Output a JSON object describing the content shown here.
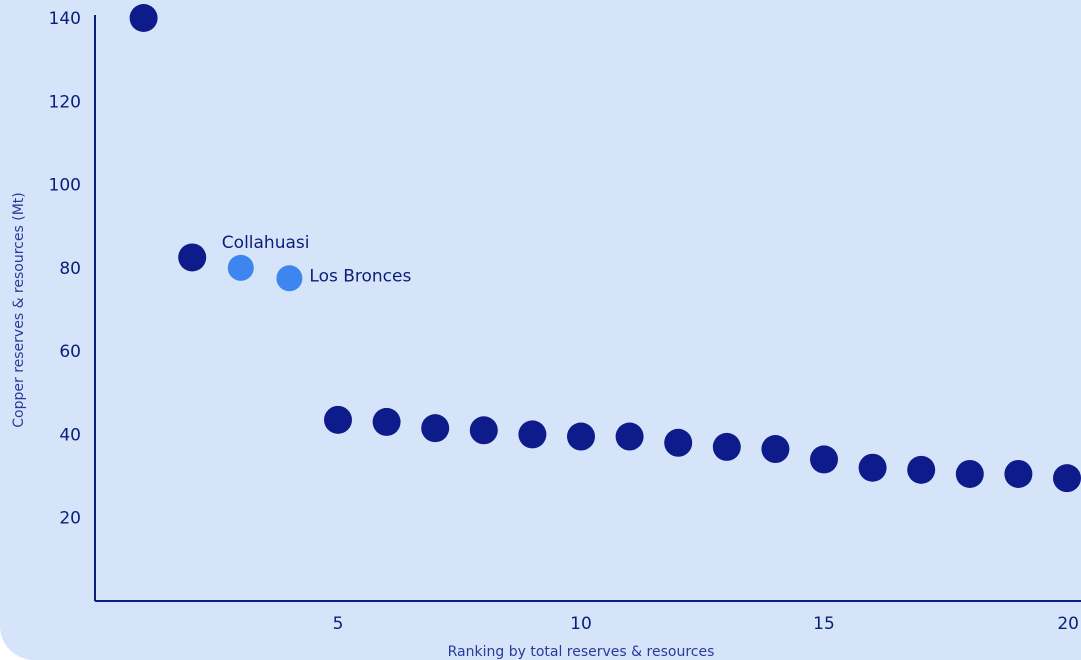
{
  "colors": {
    "background": "#d6e4fa",
    "point": "#0d1c8a",
    "highlight": "#3d86ef",
    "axis": "#0b1e7a",
    "text": "#0b1e7a"
  },
  "chart_data": {
    "type": "scatter",
    "title": "",
    "xlabel": "Ranking by total reserves & resources",
    "ylabel": "Copper reserves & resources (Mt)",
    "xlim": [
      0,
      20
    ],
    "ylim": [
      0,
      140
    ],
    "x_ticks": [
      5,
      10,
      15,
      20
    ],
    "y_ticks": [
      20,
      40,
      60,
      80,
      100,
      120,
      140
    ],
    "grid": false,
    "series": [
      {
        "role": "other",
        "color": "#0d1c8a",
        "x": [
          1,
          2,
          5,
          6,
          7,
          8,
          9,
          10,
          11,
          12,
          13,
          14,
          15,
          16,
          17,
          18,
          19,
          20
        ],
        "y": [
          140,
          82.5,
          43.5,
          43,
          41.5,
          41,
          40,
          39.5,
          39.5,
          38,
          37,
          36.5,
          34,
          32,
          31.5,
          30.5,
          30.5,
          29.5
        ]
      },
      {
        "role": "highlight",
        "color": "#3d86ef",
        "x": [
          3,
          4
        ],
        "y": [
          80,
          77.5
        ],
        "labels": [
          "Collahuasi",
          "Los Bronces"
        ]
      }
    ]
  }
}
